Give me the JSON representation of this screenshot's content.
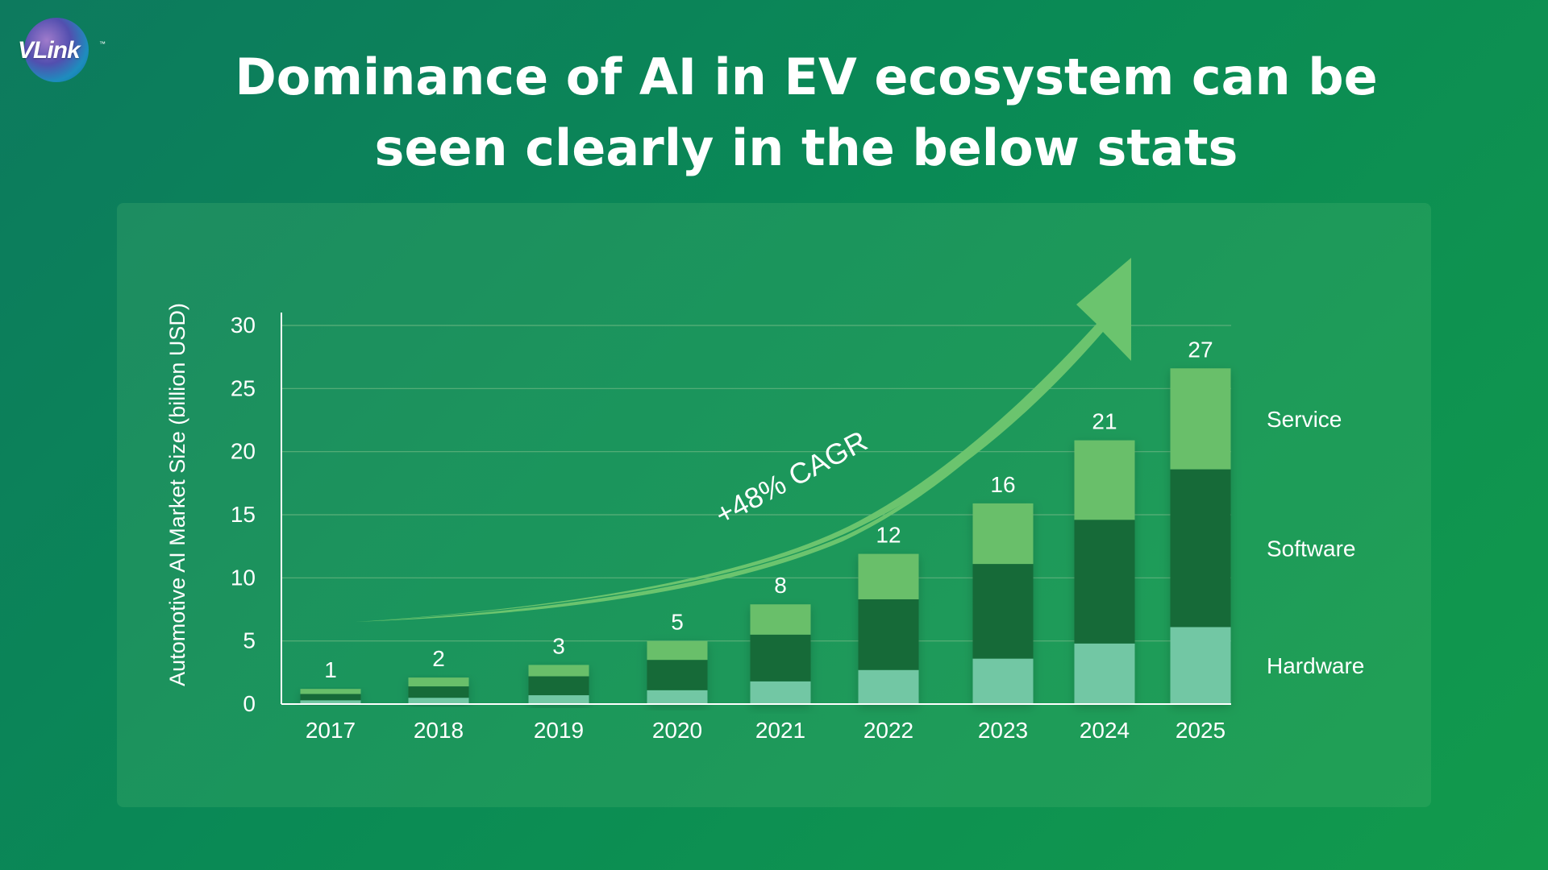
{
  "logo": {
    "text": "VLink",
    "tm": "™"
  },
  "title_lines": [
    "Dominance of AI in EV ecosystem can be",
    "seen clearly in the below stats"
  ],
  "colors": {
    "hardware": "#72c7a4",
    "software": "#146b39",
    "service": "#69bf6a",
    "arrow": "#6bc46e",
    "gridline": "#5bb07a"
  },
  "chart_data": {
    "type": "bar",
    "stacked": true,
    "title": "",
    "xlabel": "",
    "ylabel": "Automotive AI Market Size (billion USD)",
    "ylim": [
      0,
      30
    ],
    "yticks": [
      "0",
      "5",
      "10",
      "15",
      "20",
      "25",
      "30"
    ],
    "grid": true,
    "categories": [
      "2017",
      "2018",
      "2019",
      "2020",
      "2021",
      "2022",
      "2023",
      "2024",
      "2025"
    ],
    "totals": [
      "1",
      "2",
      "3",
      "5",
      "8",
      "12",
      "16",
      "21",
      "27"
    ],
    "series": [
      {
        "name": "Hardware",
        "values": [
          0.3,
          0.5,
          0.7,
          1.1,
          1.8,
          2.7,
          3.6,
          4.8,
          6.1
        ]
      },
      {
        "name": "Software",
        "values": [
          0.5,
          0.9,
          1.5,
          2.4,
          3.7,
          5.6,
          7.5,
          9.8,
          12.5
        ]
      },
      {
        "name": "Service",
        "values": [
          0.4,
          0.7,
          0.9,
          1.5,
          2.4,
          3.6,
          4.8,
          6.3,
          8.0
        ]
      }
    ],
    "legend": "right",
    "annotation": "+48% CAGR"
  }
}
